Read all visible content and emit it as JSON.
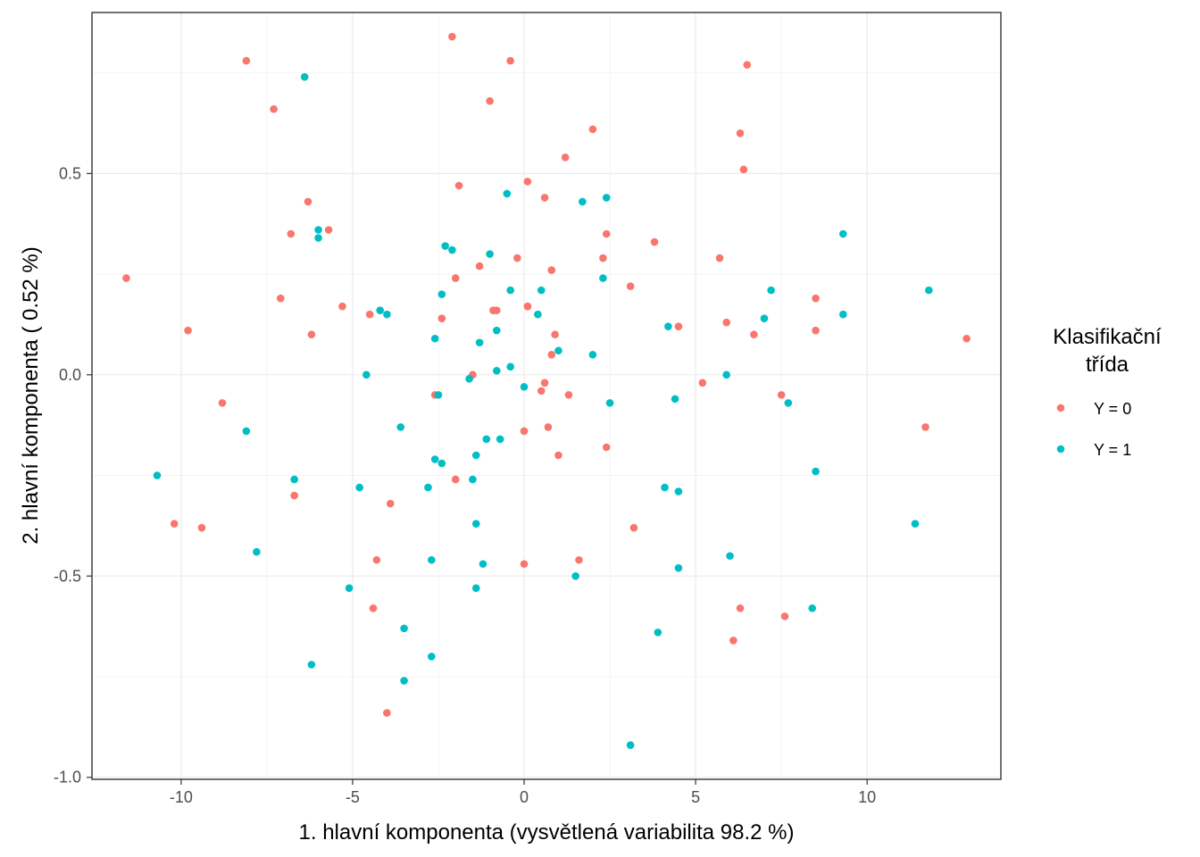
{
  "chart_data": {
    "type": "scatter",
    "xlabel": "1. hlavní komponenta (vysvětlená variabilita 98.2 %)",
    "ylabel": "2. hlavní komponenta ( 0.52 %)",
    "xlim": [
      -12.6,
      13.9
    ],
    "ylim": [
      -1.005,
      0.9
    ],
    "x_ticks": [
      -10,
      -5,
      0,
      5,
      10
    ],
    "x_tick_labels": [
      "-10",
      "-5",
      "0",
      "5",
      "10"
    ],
    "y_ticks": [
      -1.0,
      -0.5,
      0.0,
      0.5
    ],
    "y_tick_labels": [
      "-1.0",
      "-0.5",
      "0.0",
      "0.5"
    ],
    "grid": true,
    "legend": {
      "title_lines": [
        "Klasifikační",
        "třída"
      ],
      "placement": "right"
    },
    "series": [
      {
        "name": "Y = 0",
        "color": "#f8766d",
        "points": [
          [
            -11.6,
            0.24
          ],
          [
            -9.8,
            0.11
          ],
          [
            -8.1,
            0.78
          ],
          [
            -7.3,
            0.66
          ],
          [
            -7.1,
            0.19
          ],
          [
            -6.8,
            0.35
          ],
          [
            -6.3,
            0.43
          ],
          [
            -6.2,
            0.1
          ],
          [
            -5.3,
            0.17
          ],
          [
            -5.7,
            0.36
          ],
          [
            -8.8,
            -0.07
          ],
          [
            -10.2,
            -0.37
          ],
          [
            -9.4,
            -0.38
          ],
          [
            -6.7,
            -0.3
          ],
          [
            -4.5,
            0.15
          ],
          [
            -3.9,
            -0.32
          ],
          [
            -4.3,
            -0.46
          ],
          [
            -4.4,
            -0.58
          ],
          [
            -4.0,
            -0.84
          ],
          [
            -2.1,
            0.84
          ],
          [
            -0.4,
            0.78
          ],
          [
            -1.0,
            0.68
          ],
          [
            -1.9,
            0.47
          ],
          [
            -2.6,
            -0.05
          ],
          [
            -2.4,
            0.14
          ],
          [
            -2.0,
            0.24
          ],
          [
            -1.3,
            0.27
          ],
          [
            -1.5,
            0.0
          ],
          [
            -2.0,
            -0.26
          ],
          [
            -0.9,
            0.16
          ],
          [
            -0.8,
            0.16
          ],
          [
            -0.2,
            0.29
          ],
          [
            0.1,
            0.48
          ],
          [
            0.1,
            0.17
          ],
          [
            0.1,
            0.17
          ],
          [
            0.6,
            -0.02
          ],
          [
            0.5,
            -0.04
          ],
          [
            0.6,
            0.44
          ],
          [
            0.8,
            0.26
          ],
          [
            0.9,
            0.1
          ],
          [
            0.8,
            0.05
          ],
          [
            1.0,
            -0.2
          ],
          [
            0.7,
            -0.13
          ],
          [
            1.2,
            0.54
          ],
          [
            2.0,
            0.61
          ],
          [
            2.3,
            0.29
          ],
          [
            2.4,
            0.35
          ],
          [
            1.3,
            -0.05
          ],
          [
            0.0,
            -0.14
          ],
          [
            0.0,
            -0.47
          ],
          [
            1.6,
            -0.46
          ],
          [
            2.4,
            -0.18
          ],
          [
            3.1,
            0.22
          ],
          [
            3.2,
            -0.38
          ],
          [
            3.8,
            0.33
          ],
          [
            4.5,
            0.12
          ],
          [
            5.2,
            -0.02
          ],
          [
            5.7,
            0.29
          ],
          [
            6.3,
            0.6
          ],
          [
            6.5,
            0.77
          ],
          [
            6.4,
            0.51
          ],
          [
            5.9,
            0.13
          ],
          [
            6.7,
            0.1
          ],
          [
            7.5,
            -0.05
          ],
          [
            8.5,
            0.19
          ],
          [
            8.5,
            0.11
          ],
          [
            6.3,
            -0.58
          ],
          [
            6.1,
            -0.66
          ],
          [
            7.6,
            -0.6
          ],
          [
            11.7,
            -0.13
          ],
          [
            12.9,
            0.09
          ]
        ]
      },
      {
        "name": "Y = 1",
        "color": "#00bfc4",
        "points": [
          [
            -10.7,
            -0.25
          ],
          [
            -8.1,
            -0.14
          ],
          [
            -7.8,
            -0.44
          ],
          [
            -6.4,
            0.74
          ],
          [
            -6.0,
            0.36
          ],
          [
            -6.0,
            0.34
          ],
          [
            -6.7,
            -0.26
          ],
          [
            -6.2,
            -0.72
          ],
          [
            -4.2,
            0.16
          ],
          [
            -4.0,
            0.15
          ],
          [
            -4.6,
            0.0
          ],
          [
            -4.8,
            -0.28
          ],
          [
            -5.1,
            -0.53
          ],
          [
            -3.6,
            -0.13
          ],
          [
            -3.5,
            -0.63
          ],
          [
            -3.5,
            -0.76
          ],
          [
            -2.8,
            -0.28
          ],
          [
            -2.7,
            -0.46
          ],
          [
            -2.7,
            -0.7
          ],
          [
            -2.6,
            -0.21
          ],
          [
            -2.6,
            0.09
          ],
          [
            -2.5,
            -0.05
          ],
          [
            -2.4,
            0.2
          ],
          [
            -2.4,
            -0.22
          ],
          [
            -2.3,
            0.32
          ],
          [
            -2.1,
            0.31
          ],
          [
            -1.6,
            -0.01
          ],
          [
            -1.5,
            -0.26
          ],
          [
            -1.4,
            -0.2
          ],
          [
            -1.4,
            -0.37
          ],
          [
            -1.4,
            -0.53
          ],
          [
            -1.3,
            0.08
          ],
          [
            -1.2,
            -0.47
          ],
          [
            -1.1,
            -0.16
          ],
          [
            -1.0,
            0.3
          ],
          [
            -0.8,
            0.11
          ],
          [
            -0.8,
            0.01
          ],
          [
            -0.7,
            -0.16
          ],
          [
            -0.5,
            0.45
          ],
          [
            -0.4,
            0.02
          ],
          [
            -0.4,
            0.21
          ],
          [
            0.0,
            -0.03
          ],
          [
            0.4,
            0.15
          ],
          [
            0.5,
            0.21
          ],
          [
            1.0,
            0.06
          ],
          [
            1.5,
            -0.5
          ],
          [
            1.7,
            0.43
          ],
          [
            2.0,
            0.05
          ],
          [
            2.3,
            0.24
          ],
          [
            2.4,
            0.44
          ],
          [
            2.5,
            -0.07
          ],
          [
            3.1,
            -0.92
          ],
          [
            3.9,
            -0.64
          ],
          [
            4.1,
            -0.28
          ],
          [
            4.2,
            0.12
          ],
          [
            4.4,
            -0.06
          ],
          [
            4.5,
            -0.29
          ],
          [
            4.5,
            -0.48
          ],
          [
            5.9,
            0.0
          ],
          [
            6.0,
            -0.45
          ],
          [
            7.0,
            0.14
          ],
          [
            7.2,
            0.21
          ],
          [
            7.7,
            -0.07
          ],
          [
            8.4,
            -0.58
          ],
          [
            8.5,
            -0.24
          ],
          [
            9.3,
            0.35
          ],
          [
            9.3,
            0.15
          ],
          [
            11.4,
            -0.37
          ],
          [
            11.8,
            0.21
          ]
        ]
      }
    ]
  }
}
